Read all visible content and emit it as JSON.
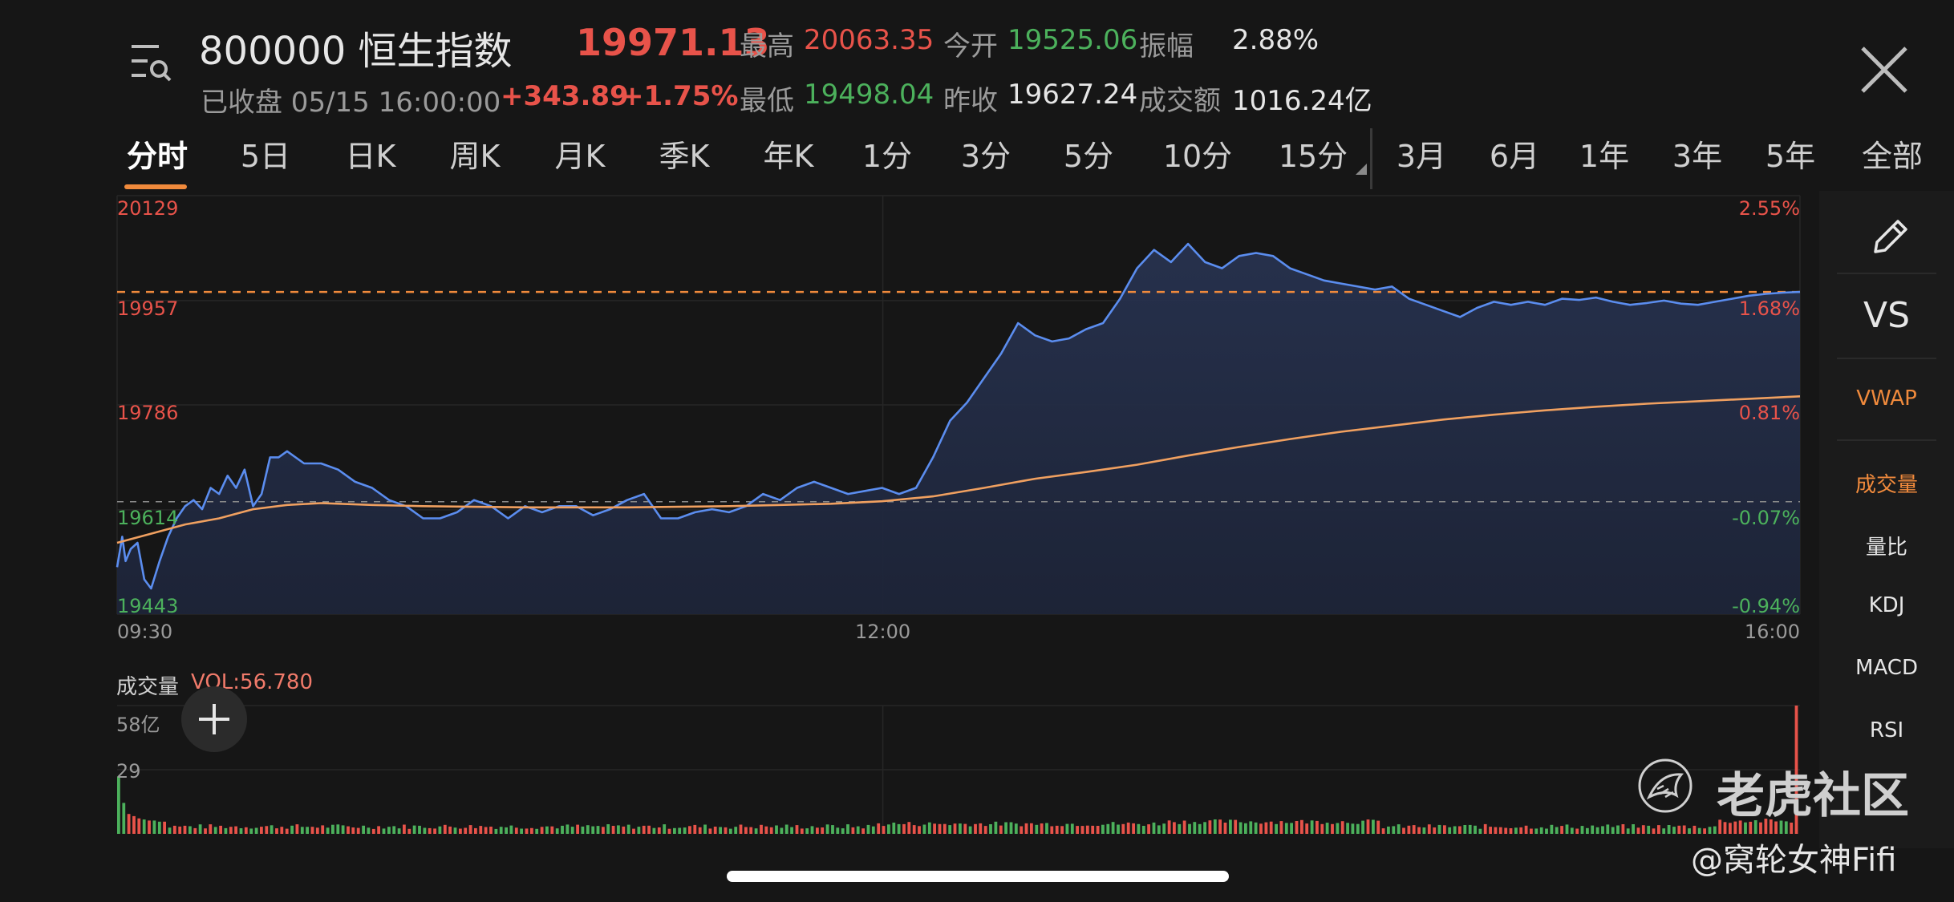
{
  "header": {
    "title": "800000 恒生指数",
    "price": "19971.13",
    "status": "已收盘 05/15 16:00:00",
    "change": "+343.89",
    "change_pct": "+1.75%",
    "stats": [
      {
        "label": "最高",
        "value": "20063.35",
        "color": "#e8534a"
      },
      {
        "label": "今开",
        "value": "19525.06",
        "color": "#4cb15c"
      },
      {
        "label": "振幅",
        "value": "2.88%",
        "color": "#e6e6e6"
      },
      {
        "label": "最低",
        "value": "19498.04",
        "color": "#4cb15c"
      },
      {
        "label": "昨收",
        "value": "19627.24",
        "color": "#e6e6e6"
      },
      {
        "label": "成交额",
        "value": "1016.24亿",
        "color": "#e6e6e6"
      }
    ]
  },
  "tabs": [
    "分时",
    "5日",
    "日K",
    "周K",
    "月K",
    "季K",
    "年K",
    "1分",
    "3分",
    "5分",
    "10分",
    "15分",
    "3月",
    "6月",
    "1年",
    "3年",
    "5年",
    "全部"
  ],
  "active_tab": "分时",
  "right_panel": {
    "vs": "VS",
    "vwap": "VWAP",
    "indicators": [
      "成交量",
      "量比",
      "KDJ",
      "MACD",
      "RSI"
    ]
  },
  "volume": {
    "label": "成交量",
    "vol_label": "VOL:56.780",
    "axis_top": "58亿",
    "axis_mid": "29"
  },
  "watermark": {
    "brand": "老虎社区",
    "author": "@窝轮女神Fifi"
  },
  "colors": {
    "up": "#e8534a",
    "down": "#4cb15c",
    "price_line": "#5b8def",
    "avg_line": "#f0a060",
    "accent": "#f08a3c"
  },
  "chart_data": {
    "type": "line",
    "x_ticks": [
      "09:30",
      "12:00",
      "16:00"
    ],
    "y_left_ticks": [
      "20129",
      "19957",
      "19786",
      "19614",
      "19443"
    ],
    "y_right_ticks": [
      "2.55%",
      "1.68%",
      "0.81%",
      "-0.07%",
      "-0.94%"
    ],
    "ylim": [
      19443,
      20129
    ],
    "prev_close": 19627.24,
    "reference_line": 19971.13,
    "series": [
      {
        "kind": "price",
        "x_minutes": [
          0,
          3,
          5,
          8,
          12,
          16,
          20,
          25,
          30,
          35,
          40,
          45,
          50,
          55,
          60,
          65,
          70,
          75,
          80,
          85,
          90,
          95,
          100,
          110,
          120,
          130,
          140,
          150,
          160,
          170,
          180,
          190,
          200,
          210,
          220,
          230,
          240,
          250,
          260,
          270,
          280,
          290,
          300,
          310,
          320,
          330,
          340,
          350,
          360,
          370,
          380,
          390,
          400,
          410,
          420,
          430,
          440,
          450,
          460,
          470,
          480,
          490,
          500,
          510,
          520,
          530,
          540,
          550,
          560,
          570,
          580,
          590,
          600,
          610,
          620,
          630,
          640,
          650,
          660,
          670,
          680,
          690,
          700,
          710,
          720,
          730,
          740,
          750,
          760,
          770,
          780,
          790,
          800,
          810,
          820,
          830,
          840,
          850,
          860,
          870,
          880,
          890,
          900,
          910,
          920,
          930,
          940,
          950,
          960,
          970,
          980,
          990
        ],
        "values": [
          19520,
          19570,
          19530,
          19550,
          19560,
          19500,
          19485,
          19530,
          19570,
          19600,
          19620,
          19630,
          19615,
          19650,
          19640,
          19670,
          19650,
          19680,
          19620,
          19640,
          19700,
          19700,
          19710,
          19690,
          19690,
          19680,
          19660,
          19650,
          19630,
          19620,
          19600,
          19600,
          19610,
          19630,
          19620,
          19600,
          19620,
          19610,
          19620,
          19620,
          19605,
          19615,
          19630,
          19640,
          19600,
          19600,
          19610,
          19615,
          19610,
          19620,
          19640,
          19630,
          19650,
          19660,
          19650,
          19640,
          19645,
          19650,
          19640,
          19650,
          19700,
          19760,
          19790,
          19830,
          19870,
          19920,
          19900,
          19890,
          19895,
          19910,
          19920,
          19960,
          20010,
          20040,
          20020,
          20050,
          20020,
          20010,
          20030,
          20035,
          20030,
          20010,
          20000,
          19990,
          19985,
          19980,
          19975,
          19980,
          19960,
          19950,
          19940,
          19930,
          19945,
          19955,
          19950,
          19955,
          19950,
          19960,
          19958,
          19962,
          19955,
          19950,
          19953,
          19957,
          19952,
          19950,
          19955,
          19960,
          19965,
          19968,
          19970,
          19971.13
        ]
      },
      {
        "kind": "average",
        "x_minutes": [
          0,
          20,
          40,
          60,
          80,
          100,
          120,
          150,
          180,
          210,
          240,
          270,
          300,
          330,
          360,
          390,
          420,
          450,
          480,
          510,
          540,
          570,
          600,
          630,
          660,
          690,
          720,
          750,
          780,
          810,
          840,
          870,
          900,
          930,
          960,
          990
        ],
        "values": [
          19560,
          19575,
          19590,
          19600,
          19615,
          19622,
          19625,
          19622,
          19620,
          19619,
          19618,
          19618,
          19618,
          19619,
          19620,
          19622,
          19624,
          19628,
          19636,
          19650,
          19665,
          19676,
          19688,
          19703,
          19717,
          19730,
          19742,
          19752,
          19762,
          19770,
          19777,
          19783,
          19788,
          19792,
          19796,
          19800
        ]
      }
    ],
    "volume_bars": {
      "count": 330,
      "ylim": [
        0,
        58
      ],
      "values": [
        26,
        14,
        9,
        8,
        7,
        6.5,
        6,
        6,
        5.5,
        5.5
      ]
    }
  }
}
